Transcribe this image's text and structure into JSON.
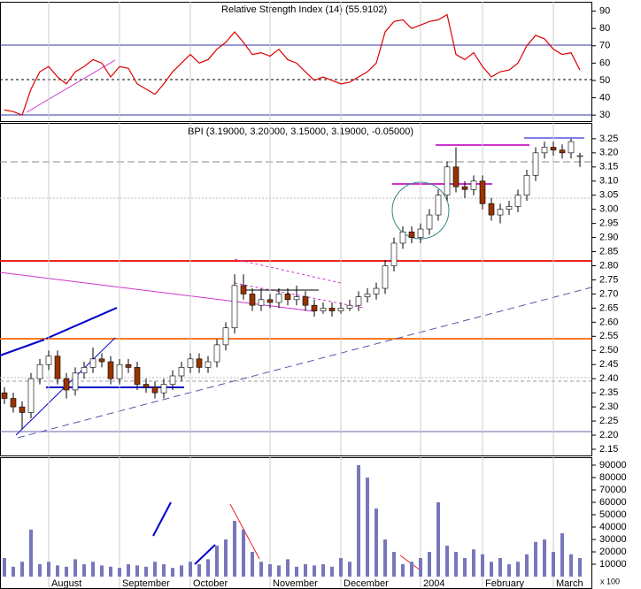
{
  "chart_data": [
    {
      "type": "line",
      "title": "Relative Strength Index (14) (55.9102)",
      "color": "#dd0000",
      "values": [
        33,
        32,
        30,
        45,
        55,
        58,
        52,
        48,
        55,
        58,
        62,
        60,
        52,
        58,
        57,
        48,
        45,
        42,
        48,
        55,
        60,
        65,
        60,
        62,
        68,
        72,
        78,
        72,
        65,
        66,
        64,
        68,
        62,
        60,
        55,
        50,
        52,
        50,
        48,
        49,
        52,
        55,
        60,
        78,
        84,
        85,
        80,
        82,
        84,
        85,
        88,
        65,
        62,
        66,
        58,
        52,
        55,
        56,
        60,
        70,
        76,
        74,
        68,
        65,
        66,
        56
      ],
      "ylim": [
        26.5,
        95.4
      ],
      "yticks": [
        30,
        40,
        50,
        60,
        70,
        80,
        90
      ]
    },
    {
      "type": "candlestick",
      "title": "BPI (3.19000, 3.20000, 3.15000, 3.19000, -0.05000)",
      "up_color": "#ffffff",
      "down_color": "#993300",
      "open": [
        2.35,
        2.33,
        2.3,
        2.28,
        2.4,
        2.45,
        2.48,
        2.4,
        2.36,
        2.42,
        2.44,
        2.47,
        2.46,
        2.4,
        2.45,
        2.44,
        2.38,
        2.37,
        2.35,
        2.38,
        2.41,
        2.44,
        2.47,
        2.44,
        2.46,
        2.52,
        2.58,
        2.73,
        2.7,
        2.66,
        2.68,
        2.67,
        2.7,
        2.68,
        2.69,
        2.66,
        2.64,
        2.65,
        2.64,
        2.65,
        2.66,
        2.69,
        2.7,
        2.72,
        2.8,
        2.88,
        2.92,
        2.9,
        2.93,
        2.98,
        3.05,
        3.15,
        3.08,
        3.07,
        3.1,
        3.02,
        2.98,
        3.0,
        3.01,
        3.05,
        3.12,
        3.2,
        3.22,
        3.21,
        3.2,
        3.19
      ],
      "high": [
        2.37,
        2.35,
        2.32,
        2.42,
        2.47,
        2.5,
        2.5,
        2.42,
        2.44,
        2.46,
        2.51,
        2.49,
        2.48,
        2.47,
        2.47,
        2.46,
        2.4,
        2.39,
        2.4,
        2.43,
        2.46,
        2.49,
        2.49,
        2.48,
        2.54,
        2.6,
        2.77,
        2.77,
        2.72,
        2.72,
        2.7,
        2.72,
        2.72,
        2.73,
        2.71,
        2.68,
        2.67,
        2.67,
        2.67,
        2.68,
        2.71,
        2.72,
        2.74,
        2.82,
        2.9,
        2.94,
        2.94,
        2.95,
        3.0,
        3.07,
        3.17,
        3.22,
        3.1,
        3.12,
        3.12,
        3.04,
        3.02,
        3.03,
        3.07,
        3.14,
        3.22,
        3.24,
        3.24,
        3.23,
        3.25,
        3.2
      ],
      "low": [
        2.31,
        2.28,
        2.22,
        2.26,
        2.38,
        2.43,
        2.38,
        2.33,
        2.34,
        2.4,
        2.42,
        2.44,
        2.38,
        2.38,
        2.42,
        2.36,
        2.35,
        2.33,
        2.33,
        2.36,
        2.39,
        2.42,
        2.42,
        2.42,
        2.44,
        2.5,
        2.56,
        2.68,
        2.64,
        2.64,
        2.65,
        2.65,
        2.66,
        2.66,
        2.64,
        2.62,
        2.63,
        2.62,
        2.63,
        2.64,
        2.64,
        2.67,
        2.68,
        2.7,
        2.78,
        2.86,
        2.88,
        2.88,
        2.91,
        2.96,
        3.03,
        3.06,
        3.04,
        3.05,
        3.0,
        2.96,
        2.95,
        2.98,
        2.99,
        3.03,
        3.1,
        3.18,
        3.19,
        3.18,
        3.18,
        3.15
      ],
      "close": [
        2.33,
        2.3,
        2.28,
        2.4,
        2.45,
        2.48,
        2.4,
        2.36,
        2.42,
        2.44,
        2.47,
        2.46,
        2.4,
        2.45,
        2.44,
        2.38,
        2.37,
        2.35,
        2.38,
        2.41,
        2.44,
        2.47,
        2.44,
        2.46,
        2.52,
        2.58,
        2.73,
        2.7,
        2.66,
        2.68,
        2.67,
        2.7,
        2.68,
        2.69,
        2.66,
        2.64,
        2.65,
        2.64,
        2.65,
        2.66,
        2.69,
        2.7,
        2.72,
        2.8,
        2.88,
        2.92,
        2.9,
        2.93,
        2.98,
        3.05,
        3.15,
        3.08,
        3.07,
        3.1,
        3.02,
        2.98,
        3.0,
        3.01,
        3.05,
        3.12,
        3.2,
        3.22,
        3.21,
        3.2,
        3.24,
        3.19
      ],
      "ylim": [
        2.128,
        3.306
      ],
      "yticks": [
        2.15,
        {
          "value": 2.2,
          "label": "2.20"
        },
        2.25,
        {
          "value": 2.3,
          "label": "2.30"
        },
        2.35,
        {
          "value": 2.4,
          "label": "2.40"
        },
        2.45,
        {
          "value": 2.5,
          "label": "2.50"
        },
        2.55,
        {
          "value": 2.6,
          "label": "2.60"
        },
        2.65,
        {
          "value": 2.7,
          "label": "2.70"
        },
        2.75,
        {
          "value": 2.8,
          "label": "2.80"
        },
        2.85,
        {
          "value": 2.9,
          "label": "2.90"
        },
        2.95,
        {
          "value": 3.0,
          "label": "3.00"
        },
        3.05,
        {
          "value": 3.1,
          "label": "3.10"
        },
        3.15,
        {
          "value": 3.2,
          "label": "3.20"
        },
        3.25
      ]
    },
    {
      "type": "bar",
      "color": "#7777bb",
      "unit_label": "x 100",
      "categories": [
        null,
        null,
        null,
        null,
        null,
        "August",
        null,
        null,
        null,
        null,
        null,
        null,
        null,
        "September",
        null,
        null,
        null,
        null,
        null,
        null,
        null,
        "October",
        null,
        null,
        null,
        null,
        null,
        null,
        null,
        null,
        "November",
        null,
        null,
        null,
        null,
        null,
        null,
        null,
        "December",
        null,
        null,
        null,
        null,
        null,
        null,
        null,
        null,
        "2004",
        null,
        null,
        null,
        null,
        null,
        null,
        "February",
        null,
        null,
        null,
        null,
        null,
        null,
        null,
        "March",
        null,
        null,
        null
      ],
      "values": [
        15000,
        8000,
        12000,
        38000,
        10000,
        12000,
        9000,
        8000,
        14000,
        10000,
        12000,
        9000,
        8000,
        7000,
        10000,
        9000,
        8000,
        12000,
        10000,
        7000,
        9000,
        12000,
        10000,
        14000,
        25000,
        30000,
        45000,
        38000,
        20000,
        12000,
        10000,
        9000,
        14000,
        8000,
        10000,
        9000,
        10000,
        8000,
        15000,
        12000,
        90000,
        80000,
        55000,
        30000,
        20000,
        10000,
        12000,
        15000,
        20000,
        60000,
        25000,
        20000,
        15000,
        22000,
        18000,
        12000,
        15000,
        10000,
        12000,
        18000,
        28000,
        30000,
        20000,
        35000,
        18000,
        15000
      ],
      "ylim": [
        0,
        96400
      ],
      "yticks": [
        10000,
        20000,
        30000,
        40000,
        50000,
        60000,
        70000,
        80000,
        90000
      ]
    }
  ]
}
